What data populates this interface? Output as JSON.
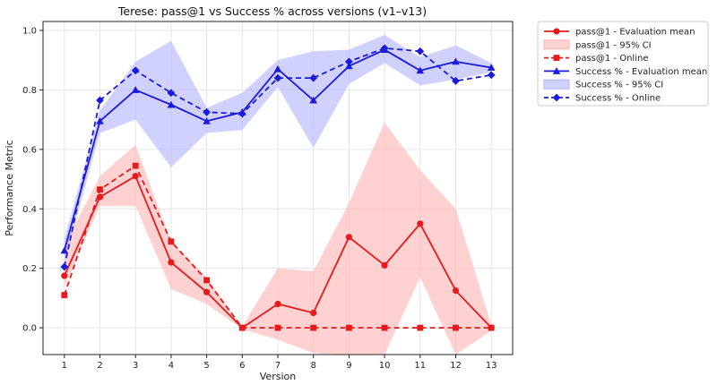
{
  "chart_data": {
    "type": "line",
    "title": "Terese: pass@1 vs Success % across versions (v1–v13)",
    "xlabel": "Version",
    "ylabel": "Performance Metric",
    "x": [
      1,
      2,
      3,
      4,
      5,
      6,
      7,
      8,
      9,
      10,
      11,
      12,
      13
    ],
    "xlim": [
      0.4,
      13.6
    ],
    "ylim": [
      -0.09,
      1.03
    ],
    "yticks": [
      0.0,
      0.2,
      0.4,
      0.6,
      0.8,
      1.0
    ],
    "ytick_labels": [
      "0.0",
      "0.2",
      "0.4",
      "0.6",
      "0.8",
      "1.0"
    ],
    "grid": true,
    "legend_position": "outside-top-right",
    "series": [
      {
        "name": "pass@1 - Evaluation mean",
        "kind": "line",
        "color": "#e41a1c",
        "linestyle": "solid",
        "marker": "circle",
        "values": [
          0.175,
          0.44,
          0.51,
          0.22,
          0.12,
          0.0,
          0.08,
          0.05,
          0.305,
          0.21,
          0.35,
          0.125,
          0.0
        ]
      },
      {
        "name": "pass@1 - 95% CI",
        "kind": "band",
        "color": "#ffb3b3",
        "lower": [
          0.14,
          0.41,
          0.41,
          0.13,
          0.08,
          -0.005,
          -0.04,
          -0.085,
          -0.09,
          -0.09,
          0.17,
          -0.09,
          -0.01
        ],
        "upper": [
          0.28,
          0.51,
          0.615,
          0.29,
          0.17,
          0.005,
          0.2,
          0.19,
          0.42,
          0.69,
          0.53,
          0.4,
          0.01
        ]
      },
      {
        "name": "pass@1 - Online",
        "kind": "line",
        "color": "#e41a1c",
        "linestyle": "dashed",
        "marker": "square",
        "values": [
          0.11,
          0.465,
          0.545,
          0.29,
          0.16,
          0.0,
          0.0,
          0.0,
          0.0,
          0.0,
          0.0,
          0.0,
          0.0
        ]
      },
      {
        "name": "Success % - Evaluation mean",
        "kind": "line",
        "color": "#1a1adb",
        "linestyle": "solid",
        "marker": "triangle",
        "values": [
          0.26,
          0.695,
          0.8,
          0.75,
          0.695,
          0.725,
          0.87,
          0.765,
          0.88,
          0.935,
          0.865,
          0.895,
          0.875
        ]
      },
      {
        "name": "Success % - 95% CI",
        "kind": "band",
        "color": "#b3b3ff",
        "lower": [
          0.22,
          0.655,
          0.7,
          0.54,
          0.655,
          0.665,
          0.81,
          0.605,
          0.82,
          0.89,
          0.815,
          0.835,
          0.86
        ],
        "upper": [
          0.3,
          0.73,
          0.895,
          0.965,
          0.74,
          0.79,
          0.9,
          0.93,
          0.935,
          0.985,
          0.91,
          0.95,
          0.89
        ]
      },
      {
        "name": "Success % - Online",
        "kind": "line",
        "color": "#1a1adb",
        "linestyle": "dashed",
        "marker": "diamond",
        "values": [
          0.205,
          0.765,
          0.865,
          0.79,
          0.725,
          0.72,
          0.84,
          0.84,
          0.895,
          0.94,
          0.93,
          0.83,
          0.85
        ]
      }
    ]
  }
}
